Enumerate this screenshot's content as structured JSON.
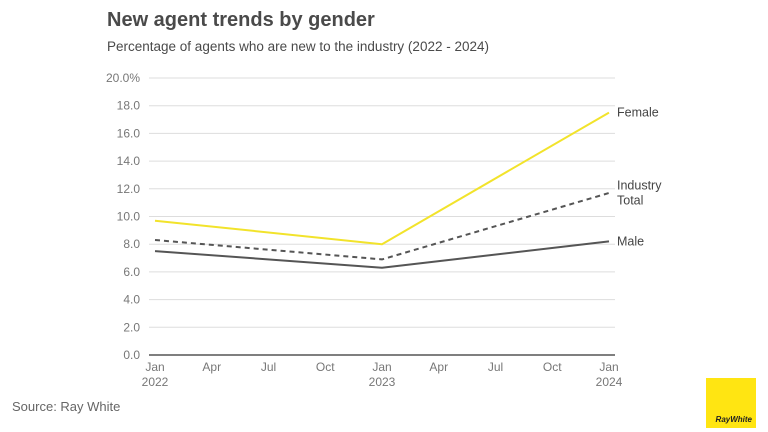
{
  "colors": {
    "female": "#f2e32b",
    "industry": "#555555",
    "male": "#555555",
    "grid": "#dddddd",
    "axis": "#555555",
    "tick_text": "#777777",
    "label_text": "#444444",
    "logo_bg": "#ffe512"
  },
  "logo": {
    "text": "RayWhite"
  },
  "source": "Source: Ray White",
  "chart_data": {
    "type": "line",
    "title": "New agent trends by gender",
    "subtitle": "Percentage of agents who are new to the industry (2022 - 2024)",
    "xlabel": "",
    "ylabel": "",
    "ylim": [
      0,
      20
    ],
    "y_ticks": [
      "0.0",
      "2.0",
      "4.0",
      "6.0",
      "8.0",
      "10.0",
      "12.0",
      "14.0",
      "16.0",
      "18.0",
      "20.0%"
    ],
    "x_ticks": [
      {
        "label": "Jan",
        "sub": "2022"
      },
      {
        "label": "Apr",
        "sub": ""
      },
      {
        "label": "Jul",
        "sub": ""
      },
      {
        "label": "Oct",
        "sub": ""
      },
      {
        "label": "Jan",
        "sub": "2023"
      },
      {
        "label": "Apr",
        "sub": ""
      },
      {
        "label": "Jul",
        "sub": ""
      },
      {
        "label": "Oct",
        "sub": ""
      },
      {
        "label": "Jan",
        "sub": "2024"
      }
    ],
    "x": [
      "Jan 2022",
      "Jan 2023",
      "Jan 2024"
    ],
    "series": [
      {
        "name": "Female",
        "label_lines": [
          "Female"
        ],
        "values": [
          9.7,
          8.0,
          17.5
        ],
        "style": "solid",
        "color_key": "female"
      },
      {
        "name": "Industry Total",
        "label_lines": [
          "Industry",
          "Total"
        ],
        "values": [
          8.3,
          6.9,
          11.7
        ],
        "style": "dashed",
        "color_key": "industry"
      },
      {
        "name": "Male",
        "label_lines": [
          "Male"
        ],
        "values": [
          7.5,
          6.3,
          8.2
        ],
        "style": "solid",
        "color_key": "male"
      }
    ],
    "grid": true,
    "legend": "right, inline labels at line ends"
  }
}
